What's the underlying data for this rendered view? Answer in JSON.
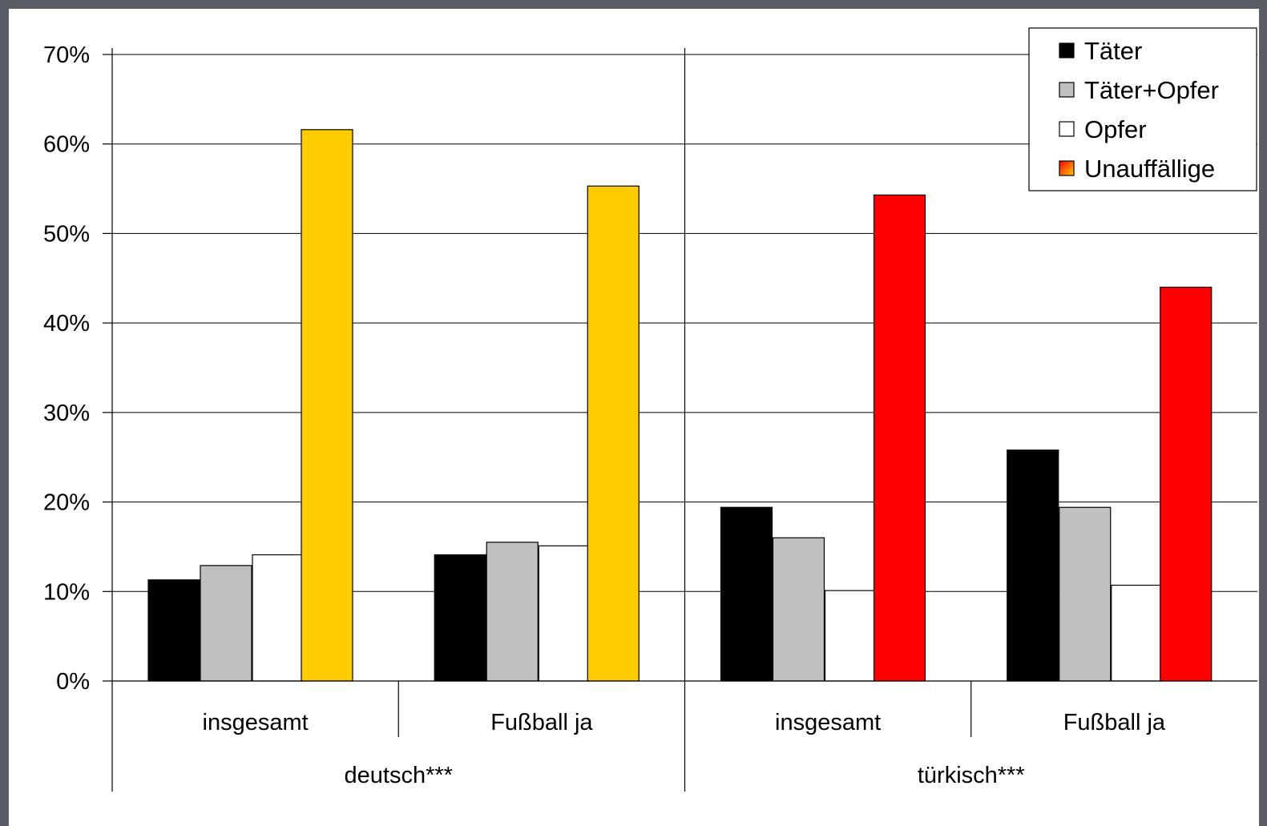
{
  "chart_data": {
    "type": "bar",
    "title": "",
    "xlabel": "",
    "ylabel": "",
    "ylim": [
      0,
      70
    ],
    "yticks": [
      "0%",
      "10%",
      "20%",
      "30%",
      "40%",
      "50%",
      "60%",
      "70%"
    ],
    "grid": true,
    "legend_position": "top-right",
    "groups": [
      {
        "label": "deutsch***",
        "categories": [
          "insgesamt",
          "Fußball ja"
        ]
      },
      {
        "label": "türkisch***",
        "categories": [
          "insgesamt",
          "Fußball ja"
        ]
      }
    ],
    "categories": [
      "insgesamt",
      "Fußball ja",
      "insgesamt",
      "Fußball ja"
    ],
    "series": [
      {
        "name": "Täter",
        "color": "#000000",
        "values": [
          11.3,
          14.1,
          19.4,
          25.8
        ]
      },
      {
        "name": "Täter+Opfer",
        "color": "#c0c0c0",
        "values": [
          12.9,
          15.5,
          16.0,
          19.4
        ]
      },
      {
        "name": "Opfer",
        "color": "#ffffff",
        "values": [
          14.1,
          15.1,
          10.1,
          10.7
        ]
      },
      {
        "name": "Unauffällige",
        "colors": [
          "#ffcc00",
          "#ffcc00",
          "#ff0000",
          "#ff0000"
        ],
        "legend_gradient": [
          "#ff0000",
          "#ffcc00"
        ],
        "values": [
          61.6,
          55.3,
          54.3,
          44.0
        ]
      }
    ]
  }
}
